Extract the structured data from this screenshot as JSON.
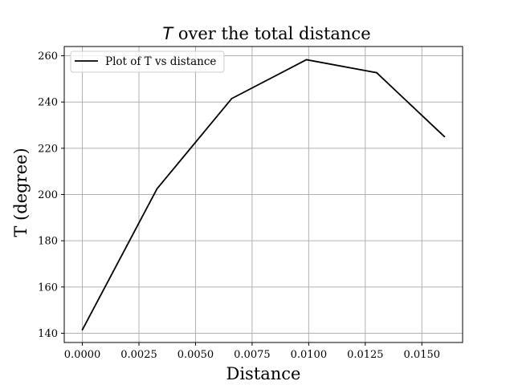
{
  "chart_data": {
    "type": "line",
    "title": "T over the total distance",
    "title_math_part": "T",
    "title_rest": " over the total distance",
    "xlabel": "Distance",
    "ylabel": "T (degree)",
    "xlim": [
      -0.0008,
      0.0168
    ],
    "ylim": [
      136,
      264
    ],
    "x_ticks": [
      0.0,
      0.0025,
      0.005,
      0.0075,
      0.01,
      0.0125,
      0.015
    ],
    "x_tick_labels": [
      "0.0000",
      "0.0025",
      "0.0050",
      "0.0075",
      "0.0100",
      "0.0125",
      "0.0150"
    ],
    "y_ticks": [
      140,
      160,
      180,
      200,
      220,
      240,
      260
    ],
    "y_tick_labels": [
      "140",
      "160",
      "180",
      "200",
      "220",
      "240",
      "260"
    ],
    "grid": true,
    "legend_position": "top-left",
    "series": [
      {
        "name": "Plot of T vs distance",
        "color": "#000000",
        "x": [
          0.0,
          0.0033,
          0.0066,
          0.0099,
          0.013,
          0.016
        ],
        "y": [
          141.5,
          202.5,
          241.5,
          258.3,
          252.7,
          225.0
        ]
      }
    ]
  }
}
